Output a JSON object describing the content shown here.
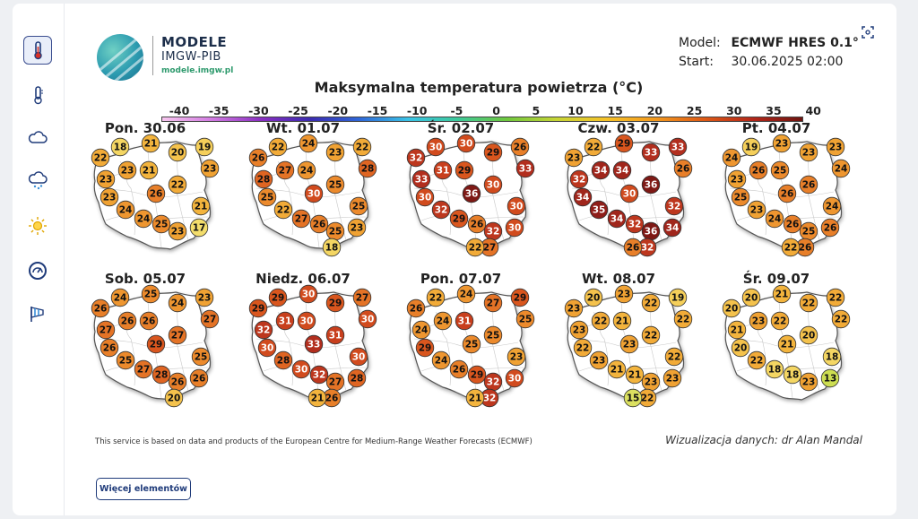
{
  "sidebar": {
    "items": [
      {
        "name": "thermometer-alert-icon",
        "active": true
      },
      {
        "name": "thermometer-icon",
        "active": false
      },
      {
        "name": "cloud-icon",
        "active": false
      },
      {
        "name": "rain-cloud-icon",
        "active": false
      },
      {
        "name": "sun-icon",
        "active": false
      },
      {
        "name": "gauge-icon",
        "active": false
      },
      {
        "name": "windsock-icon",
        "active": false
      }
    ]
  },
  "logo": {
    "line1": "MODELE",
    "line2": "IMGW-PIB",
    "url": "modele.imgw.pl",
    "mark": "IMGW"
  },
  "model_info": {
    "model_label": "Model:",
    "model_value": "ECMWF HRES 0.1°",
    "start_label": "Start:",
    "start_value": "30.06.2025 02:00"
  },
  "chart": {
    "title": "Maksymalna temperatura powietrza (°C)",
    "colorbar_ticks": [
      "-40",
      "-35",
      "-30",
      "-25",
      "-20",
      "-15",
      "-10",
      "-5",
      "0",
      "5",
      "10",
      "15",
      "20",
      "25",
      "30",
      "35",
      "40"
    ],
    "footer_note": "This service is based on data and products of the European Centre for Medium-Range Weather Forecasts (ECMWF)",
    "credit": "Wizualizacja danych: dr Alan Mandal"
  },
  "chart_data": {
    "type": "table",
    "unit": "°C",
    "value_range": [
      -40,
      40
    ],
    "days": [
      {
        "label": "Pon. 30.06",
        "values": [
          18,
          21,
          20,
          19,
          22,
          23,
          21,
          23,
          23,
          22,
          26,
          23,
          21,
          24,
          24,
          25,
          23,
          17
        ]
      },
      {
        "label": "Wt. 01.07",
        "values": [
          22,
          24,
          23,
          22,
          26,
          27,
          24,
          28,
          28,
          25,
          30,
          25,
          25,
          22,
          27,
          26,
          25,
          23,
          18
        ]
      },
      {
        "label": "Śr. 02.07",
        "values": [
          30,
          30,
          29,
          26,
          32,
          31,
          29,
          33,
          33,
          30,
          36,
          30,
          30,
          32,
          29,
          26,
          32,
          30,
          27,
          22
        ]
      },
      {
        "label": "Czw. 03.07",
        "values": [
          22,
          29,
          33,
          33,
          23,
          34,
          34,
          26,
          32,
          36,
          30,
          34,
          32,
          35,
          34,
          32,
          36,
          34,
          32,
          26
        ]
      },
      {
        "label": "Pt. 04.07",
        "values": [
          19,
          23,
          23,
          23,
          24,
          26,
          25,
          24,
          23,
          26,
          26,
          25,
          24,
          23,
          24,
          26,
          25,
          26,
          26,
          22
        ]
      },
      {
        "label": "Sob. 05.07",
        "values": [
          24,
          25,
          24,
          23,
          26,
          26,
          26,
          27,
          27,
          27,
          29,
          26,
          25,
          25,
          27,
          28,
          26,
          26,
          20
        ]
      },
      {
        "label": "Niedz. 06.07",
        "values": [
          29,
          30,
          29,
          27,
          29,
          31,
          30,
          30,
          32,
          31,
          33,
          30,
          30,
          28,
          30,
          32,
          27,
          28,
          26,
          21
        ]
      },
      {
        "label": "Pon. 07.07",
        "values": [
          22,
          24,
          27,
          29,
          26,
          24,
          31,
          25,
          24,
          25,
          25,
          29,
          23,
          24,
          26,
          29,
          32,
          30,
          32,
          21
        ]
      },
      {
        "label": "Wt. 08.07",
        "values": [
          20,
          23,
          22,
          19,
          23,
          22,
          21,
          22,
          23,
          22,
          23,
          22,
          22,
          23,
          21,
          21,
          23,
          23,
          22,
          15
        ]
      },
      {
        "label": "Śr. 09.07",
        "values": [
          20,
          21,
          22,
          22,
          20,
          23,
          22,
          22,
          21,
          20,
          21,
          20,
          18,
          22,
          18,
          18,
          23,
          13
        ]
      }
    ]
  },
  "more_button": {
    "label": "Więcej elementów"
  }
}
